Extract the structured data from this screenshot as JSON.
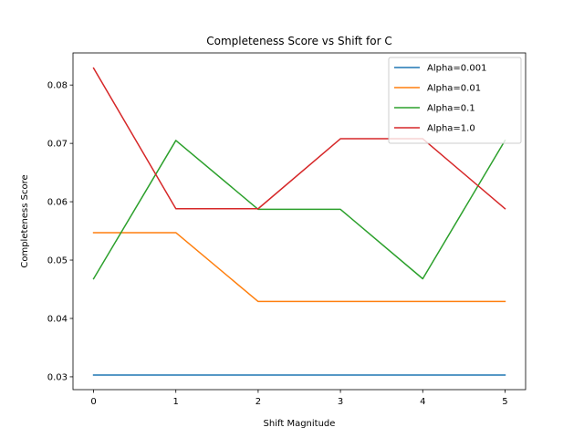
{
  "chart_data": {
    "type": "line",
    "title": "Completeness Score vs Shift for C",
    "xlabel": "Shift Magnitude",
    "ylabel": "Completeness Score",
    "x": [
      0,
      1,
      2,
      3,
      4,
      5
    ],
    "xticks": [
      0,
      1,
      2,
      3,
      4,
      5
    ],
    "yticks": [
      "0.03",
      "0.04",
      "0.05",
      "0.06",
      "0.07",
      "0.08"
    ],
    "xlim": [
      -0.25,
      5.25
    ],
    "ylim": [
      0.0278,
      0.0855
    ],
    "grid": false,
    "legend_position": "upper right",
    "series": [
      {
        "name": "Alpha=0.001",
        "color": "#1f77b4",
        "values": [
          0.0303,
          0.0303,
          0.0303,
          0.0303,
          0.0303,
          0.0303
        ]
      },
      {
        "name": "Alpha=0.01",
        "color": "#ff7f0e",
        "values": [
          0.0547,
          0.0547,
          0.0429,
          0.0429,
          0.0429,
          0.0429
        ]
      },
      {
        "name": "Alpha=0.1",
        "color": "#2ca02c",
        "values": [
          0.0468,
          0.0705,
          0.0587,
          0.0587,
          0.0468,
          0.0705
        ]
      },
      {
        "name": "Alpha=1.0",
        "color": "#d62728",
        "values": [
          0.0829,
          0.0588,
          0.0588,
          0.0708,
          0.0708,
          0.0588
        ]
      }
    ]
  }
}
